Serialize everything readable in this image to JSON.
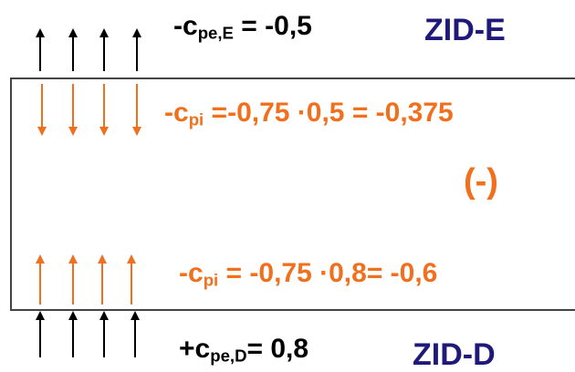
{
  "colors": {
    "external": "#000000",
    "internal": "#f0701e",
    "zone": "#1f1a7a",
    "wall": "#444444"
  },
  "top_external": {
    "prefix": "-c",
    "sub": "pe,E",
    "suffix": " = -0,5"
  },
  "top_zone": "ZID-E",
  "top_internal": {
    "prefix": "-c",
    "sub": "pi",
    "suffix": " =-0,75 ·0,5 = -0,375"
  },
  "sign": "(-)",
  "bottom_internal": {
    "prefix": "-c",
    "sub": "pi",
    "suffix": " = -0,75 ·0,8= -0,6"
  },
  "bottom_external": {
    "prefix": "+c",
    "sub": "pe,D",
    "suffix": "= 0,8"
  },
  "bottom_zone": "ZID-D",
  "arrows": {
    "top_external": {
      "direction": "up",
      "count": 4
    },
    "top_internal": {
      "direction": "down",
      "count": 4
    },
    "bottom_internal": {
      "direction": "up",
      "count": 4
    },
    "bottom_external": {
      "direction": "up",
      "count": 4
    }
  }
}
